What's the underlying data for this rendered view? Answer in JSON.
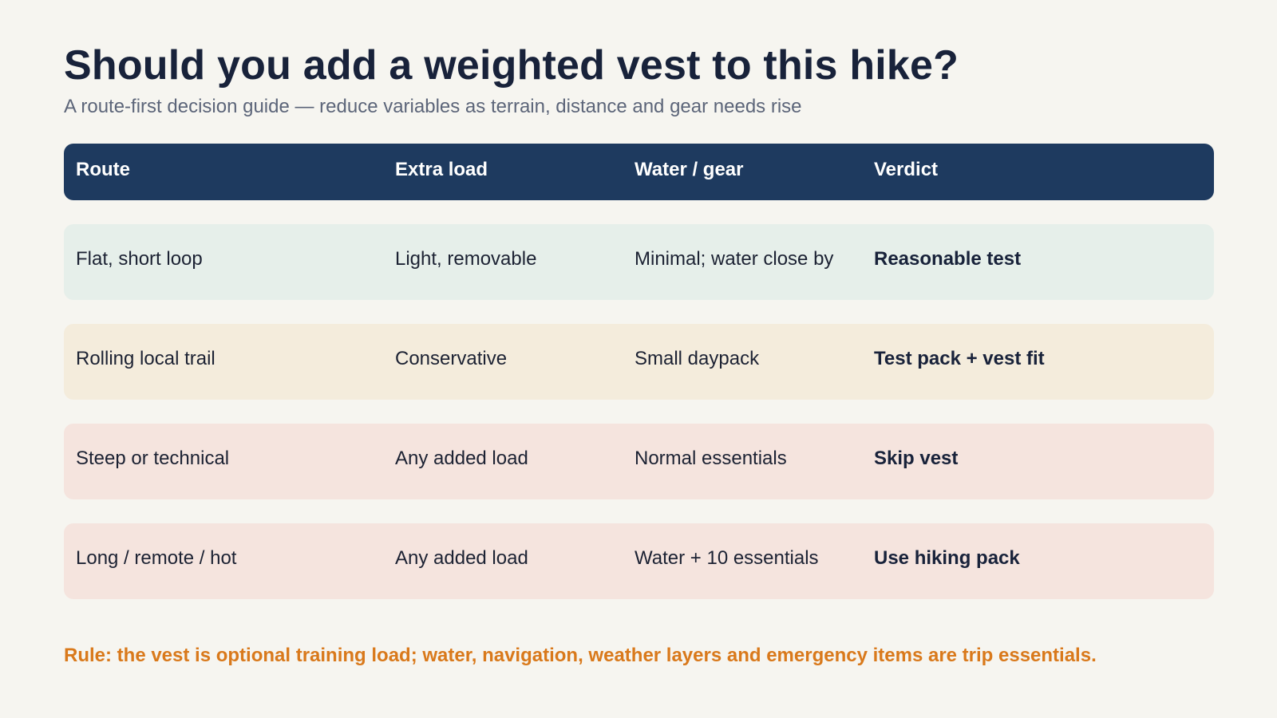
{
  "header": {
    "title": "Should you add a weighted vest to this hike?",
    "subtitle": "A route-first decision guide — reduce variables as terrain, distance and gear needs rise"
  },
  "table": {
    "columns": [
      "Route",
      "Extra load",
      "Water / gear",
      "Verdict"
    ],
    "rows": [
      {
        "route": "Flat, short loop",
        "extra_load": "Light, removable",
        "water_gear": "Minimal; water close by",
        "verdict": "Reasonable test",
        "tone": "green"
      },
      {
        "route": "Rolling local trail",
        "extra_load": "Conservative",
        "water_gear": "Small daypack",
        "verdict": "Test pack + vest fit",
        "tone": "yellow"
      },
      {
        "route": "Steep or technical",
        "extra_load": "Any added load",
        "water_gear": "Normal essentials",
        "verdict": "Skip vest",
        "tone": "red"
      },
      {
        "route": "Long / remote / hot",
        "extra_load": "Any added load",
        "water_gear": "Water + 10 essentials",
        "verdict": "Use hiking pack",
        "tone": "red"
      }
    ]
  },
  "footer": {
    "rule": "Rule: the vest is optional training load; water, navigation, weather layers and emergency items are trip essentials."
  },
  "colors": {
    "background": "#f6f5f0",
    "header_bg": "#1e3a5f",
    "green_row": "#e6efea",
    "yellow_row": "#f4ecdc",
    "red_row": "#f5e4de",
    "rule_text": "#d9791b"
  }
}
